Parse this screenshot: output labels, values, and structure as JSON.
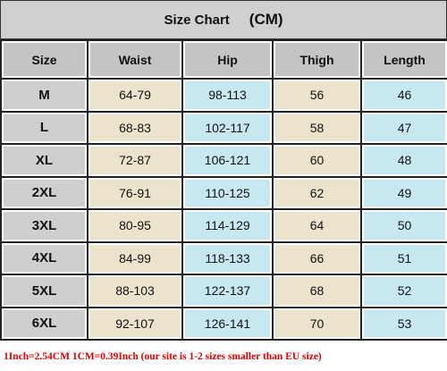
{
  "header": {
    "title": "Size Chart",
    "unit": "(CM)"
  },
  "table": {
    "columns": [
      "Size",
      "Waist",
      "Hip",
      "Thigh",
      "Length"
    ],
    "rows": [
      [
        "M",
        "64-79",
        "98-113",
        56,
        46
      ],
      [
        "L",
        "68-83",
        "102-117",
        58,
        47
      ],
      [
        "XL",
        "72-87",
        "106-121",
        60,
        48
      ],
      [
        "2XL",
        "76-91",
        "110-125",
        62,
        49
      ],
      [
        "3XL",
        "80-95",
        "114-129",
        64,
        50
      ],
      [
        "4XL",
        "84-99",
        "118-133",
        66,
        51
      ],
      [
        "5XL",
        "88-103",
        "122-137",
        68,
        52
      ],
      [
        "6XL",
        "92-107",
        "126-141",
        70,
        53
      ]
    ]
  },
  "footer": {
    "note": "1Inch=2.54CM  1CM=0.39Inch (our site is 1-2 sizes smaller than EU size)"
  }
}
